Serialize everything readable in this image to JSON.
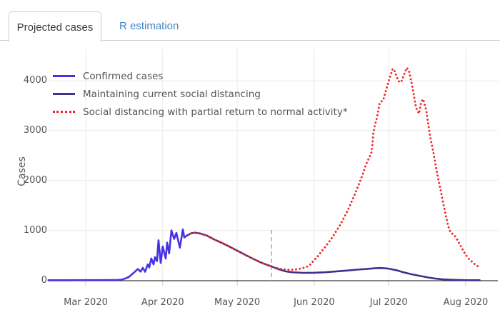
{
  "tabs": [
    {
      "label": "Projected cases",
      "active": true
    },
    {
      "label": "R estimation",
      "active": false
    }
  ],
  "colors": {
    "confirmed_line": "#4432e4",
    "maintain_line": "#3a338f",
    "partial_return_line": "#f12a2a",
    "projection_marker_line": "#e08c8c",
    "inactive_tab_text": "#3d85c6",
    "active_tab_text": "#3c3c3c",
    "gridline": "#ebebeb",
    "axis_line": "#3b3b3b",
    "tick_text": "#565656"
  },
  "chart_data": {
    "type": "line",
    "title": "",
    "xlabel": "",
    "ylabel": "Cases",
    "x_unit": "days since 2020-03-01",
    "grid": true,
    "legend_position": "top-left",
    "x_axis": {
      "tick_labels": [
        "Mar 2020",
        "Apr 2020",
        "May 2020",
        "Jun 2020",
        "Jul 2020",
        "Aug 2020"
      ],
      "tick_days": [
        0,
        31,
        61,
        92,
        122,
        153
      ]
    },
    "y_axis": {
      "tick_labels": [
        "0",
        "1000",
        "2000",
        "3000",
        "4000"
      ],
      "tick_values": [
        0,
        1000,
        2000,
        3000,
        4000
      ],
      "range": [
        0,
        4600
      ]
    },
    "annotation_line": {
      "meaning": "projection start (mid-May)",
      "day": 74.8,
      "top_value": 1010,
      "style": "dashed",
      "color": "#e08c8c"
    },
    "series": [
      {
        "name": "Confirmed cases",
        "color": "#4432e4",
        "style": "solid",
        "points": [
          [
            -15,
            3
          ],
          [
            -8,
            3
          ],
          [
            0,
            4
          ],
          [
            6,
            5
          ],
          [
            10,
            6
          ],
          [
            13,
            9
          ],
          [
            14.5,
            14
          ],
          [
            16,
            38
          ],
          [
            17.5,
            72
          ],
          [
            18.7,
            125
          ],
          [
            20,
            182
          ],
          [
            21,
            228
          ],
          [
            22.1,
            175
          ],
          [
            23,
            250
          ],
          [
            23.9,
            172
          ],
          [
            25,
            320
          ],
          [
            25.6,
            258
          ],
          [
            26.4,
            440
          ],
          [
            27.3,
            320
          ],
          [
            27.9,
            465
          ],
          [
            28.7,
            385
          ],
          [
            29.3,
            805
          ],
          [
            30.2,
            348
          ],
          [
            31,
            680
          ],
          [
            32.2,
            437
          ],
          [
            32.8,
            755
          ],
          [
            33.6,
            540
          ],
          [
            34.5,
            1000
          ],
          [
            35.6,
            830
          ],
          [
            36.5,
            950
          ],
          [
            37.9,
            655
          ],
          [
            39.1,
            1020
          ],
          [
            39.7,
            858
          ],
          [
            40.8,
            900
          ]
        ]
      },
      {
        "name": "Maintaining current social distancing",
        "color": "#3a338f",
        "style": "solid",
        "points": [
          [
            40.8,
            900
          ],
          [
            42.5,
            945
          ],
          [
            44,
            955
          ],
          [
            46,
            940
          ],
          [
            48.9,
            895
          ],
          [
            51.7,
            820
          ],
          [
            54.6,
            755
          ],
          [
            57.5,
            685
          ],
          [
            61.2,
            590
          ],
          [
            64.7,
            500
          ],
          [
            67.5,
            430
          ],
          [
            70.4,
            360
          ],
          [
            73.3,
            305
          ],
          [
            74.7,
            280
          ],
          [
            77.6,
            225
          ],
          [
            80.5,
            180
          ],
          [
            83.3,
            162
          ],
          [
            87.6,
            150
          ],
          [
            92,
            153
          ],
          [
            96.3,
            162
          ],
          [
            100.6,
            178
          ],
          [
            105.5,
            197
          ],
          [
            109.2,
            215
          ],
          [
            112.9,
            228
          ],
          [
            116.4,
            242
          ],
          [
            118.7,
            247
          ],
          [
            121.6,
            237
          ],
          [
            125.6,
            197
          ],
          [
            127.9,
            162
          ],
          [
            131.3,
            122
          ],
          [
            135.1,
            85
          ],
          [
            138,
            57
          ],
          [
            140.9,
            35
          ],
          [
            143.7,
            20
          ],
          [
            148,
            10
          ],
          [
            152.3,
            5
          ],
          [
            158.6,
            3
          ]
        ]
      },
      {
        "name": "Social distancing with partial return to normal activity*",
        "color": "#f12a2a",
        "style": "dotted",
        "points": [
          [
            40.8,
            900
          ],
          [
            42.5,
            945
          ],
          [
            44,
            955
          ],
          [
            46,
            940
          ],
          [
            48.9,
            895
          ],
          [
            51.7,
            820
          ],
          [
            54.6,
            755
          ],
          [
            57.5,
            685
          ],
          [
            61.2,
            590
          ],
          [
            64.7,
            500
          ],
          [
            67.5,
            430
          ],
          [
            70.4,
            360
          ],
          [
            73.3,
            305
          ],
          [
            74.7,
            280
          ],
          [
            77,
            245
          ],
          [
            79,
            225
          ],
          [
            81,
            215
          ],
          [
            83.1,
            213
          ],
          [
            85.1,
            222
          ],
          [
            87.1,
            240
          ],
          [
            89.1,
            275
          ],
          [
            90.5,
            320
          ],
          [
            92,
            410
          ],
          [
            93.4,
            480
          ],
          [
            94.8,
            570
          ],
          [
            96.3,
            660
          ],
          [
            98,
            770
          ],
          [
            99.4,
            870
          ],
          [
            100.9,
            990
          ],
          [
            102.6,
            1120
          ],
          [
            104,
            1260
          ],
          [
            105.5,
            1400
          ],
          [
            106.9,
            1560
          ],
          [
            108.3,
            1720
          ],
          [
            109.8,
            1900
          ],
          [
            111.5,
            2120
          ],
          [
            112.9,
            2330
          ],
          [
            114.1,
            2450
          ],
          [
            115,
            2560
          ],
          [
            115.5,
            2755
          ],
          [
            115.8,
            2950
          ],
          [
            116.4,
            3100
          ],
          [
            117.2,
            3245
          ],
          [
            118.4,
            3560
          ],
          [
            119.8,
            3610
          ],
          [
            120.7,
            3775
          ],
          [
            121.6,
            3930
          ],
          [
            122.7,
            4100
          ],
          [
            123.6,
            4240
          ],
          [
            124.4,
            4190
          ],
          [
            125.9,
            3990
          ],
          [
            127,
            3970
          ],
          [
            127.9,
            4090
          ],
          [
            129.3,
            4260
          ],
          [
            130.2,
            4190
          ],
          [
            131.3,
            3940
          ],
          [
            132.2,
            3680
          ],
          [
            133,
            3460
          ],
          [
            134.2,
            3340
          ],
          [
            135.1,
            3580
          ],
          [
            135.9,
            3630
          ],
          [
            137.1,
            3410
          ],
          [
            138,
            3100
          ],
          [
            138.8,
            2855
          ],
          [
            140,
            2560
          ],
          [
            141.1,
            2250
          ],
          [
            142,
            2020
          ],
          [
            143.1,
            1760
          ],
          [
            144,
            1530
          ],
          [
            145.1,
            1280
          ],
          [
            146,
            1080
          ],
          [
            146.9,
            960
          ],
          [
            147.7,
            930
          ],
          [
            148.6,
            890
          ],
          [
            149.4,
            830
          ],
          [
            150.3,
            750
          ],
          [
            151.4,
            650
          ],
          [
            152.3,
            570
          ],
          [
            153.2,
            500
          ],
          [
            154.3,
            430
          ],
          [
            155.2,
            390
          ],
          [
            156,
            350
          ],
          [
            156.9,
            315
          ],
          [
            157.8,
            285
          ],
          [
            158.4,
            270
          ]
        ]
      }
    ]
  }
}
